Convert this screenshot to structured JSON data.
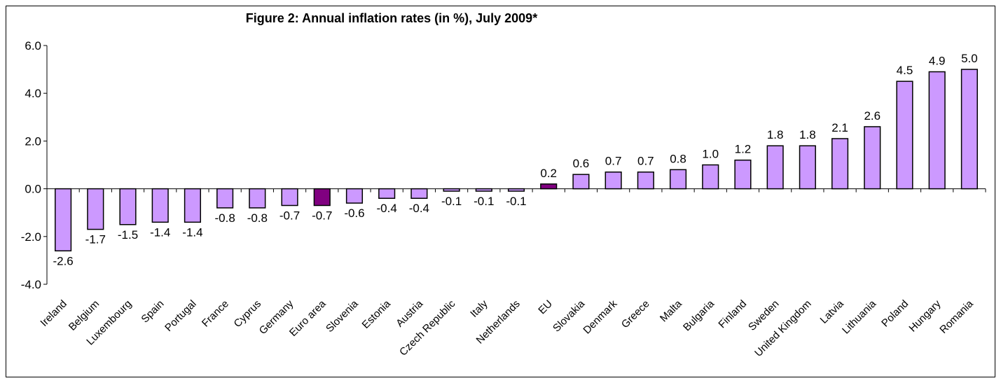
{
  "chart_data": {
    "type": "bar",
    "title": "Figure 2: Annual inflation rates (in %), July 2009*",
    "xlabel": "",
    "ylabel": "",
    "ylim": [
      -4.0,
      6.0
    ],
    "yticks": [
      "6.0",
      "4.0",
      "2.0",
      "0.0",
      "-2.0",
      "-4.0"
    ],
    "categories": [
      "Ireland",
      "Belgium",
      "Luxembourg",
      "Spain",
      "Portugal",
      "France",
      "Cyprus",
      "Germany",
      "Euro area",
      "Slovenia",
      "Estonia",
      "Austria",
      "Czech Republic",
      "Italy",
      "Netherlands",
      "EU",
      "Slovakia",
      "Denmark",
      "Greece",
      "Malta",
      "Bulgaria",
      "Finland",
      "Sweden",
      "United Kingdom",
      "Latvia",
      "Lithuania",
      "Poland",
      "Hungary",
      "Romania"
    ],
    "values": [
      -2.6,
      -1.7,
      -1.5,
      -1.4,
      -1.4,
      -0.8,
      -0.8,
      -0.7,
      -0.7,
      -0.6,
      -0.4,
      -0.4,
      -0.1,
      -0.1,
      -0.1,
      0.2,
      0.6,
      0.7,
      0.7,
      0.8,
      1.0,
      1.2,
      1.8,
      1.8,
      2.1,
      2.6,
      4.5,
      4.9,
      5.0
    ],
    "value_labels": [
      "-2.6",
      "-1.7",
      "-1.5",
      "-1.4",
      "-1.4",
      "-0.8",
      "-0.8",
      "-0.7",
      "-0.7",
      "-0.6",
      "-0.4",
      "-0.4",
      "-0.1",
      "-0.1",
      "-0.1",
      "0.2",
      "0.6",
      "0.7",
      "0.7",
      "0.8",
      "1.0",
      "1.2",
      "1.8",
      "1.8",
      "2.1",
      "2.6",
      "4.5",
      "4.9",
      "5.0"
    ],
    "highlighted": [
      "Euro area",
      "EU"
    ],
    "colors": {
      "bar": "#CC99FF",
      "highlight": "#800080",
      "outline": "#000000",
      "background": "#FFFFFF"
    },
    "grid": false,
    "legend": "none"
  }
}
